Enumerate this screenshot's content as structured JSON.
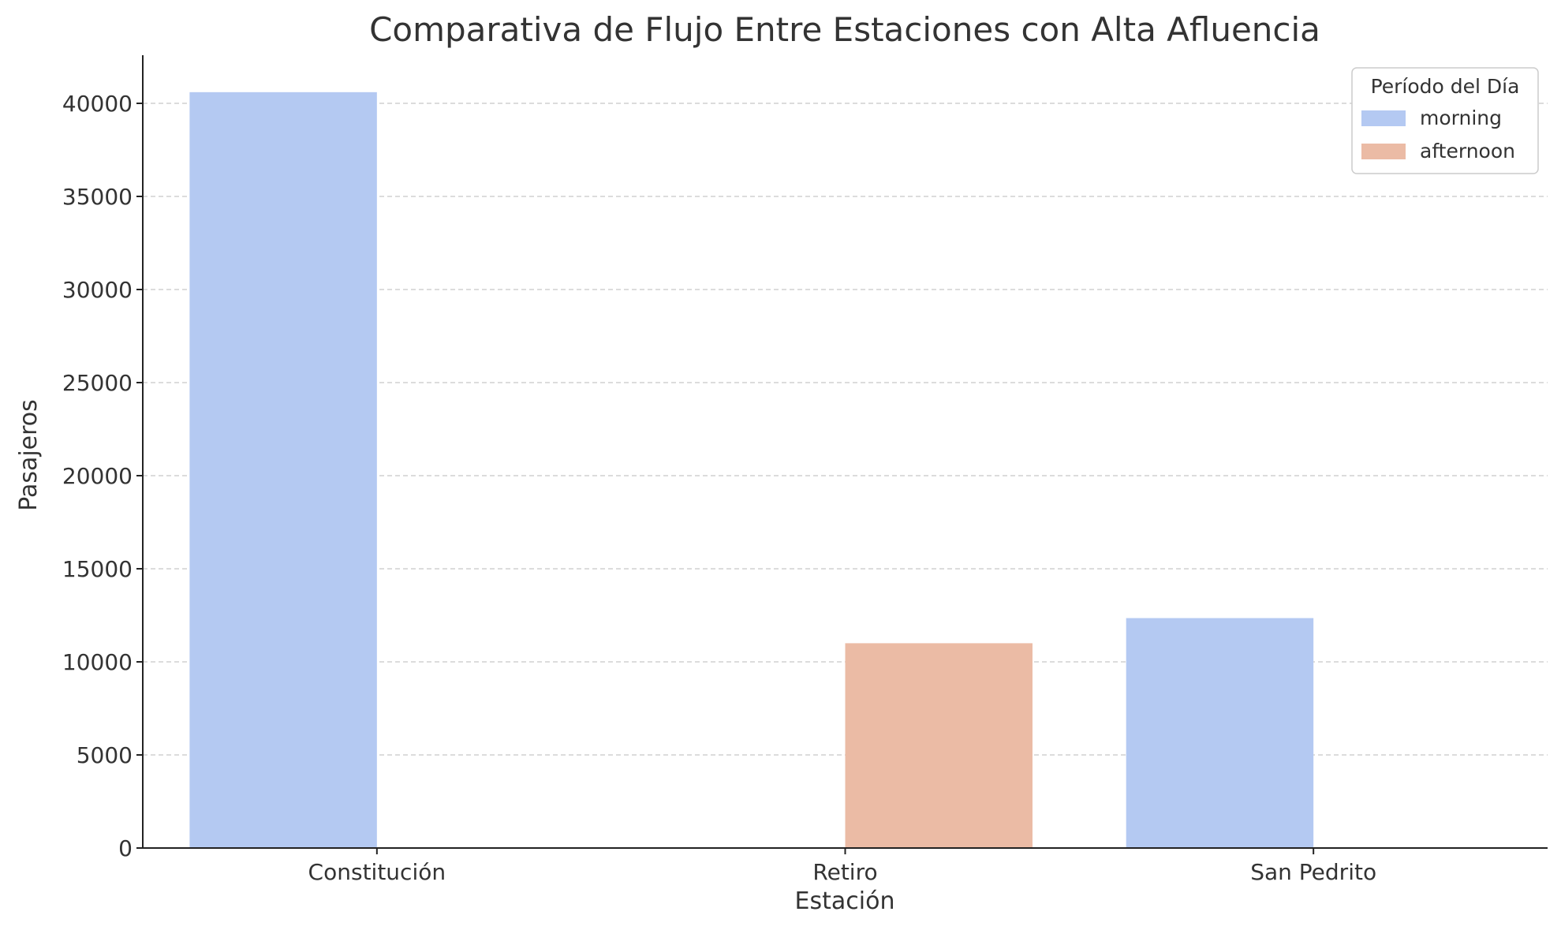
{
  "chart_data": {
    "type": "bar",
    "title": "Comparativa de Flujo Entre Estaciones con Alta Afluencia",
    "xlabel": "Estación",
    "ylabel": "Pasajeros",
    "categories": [
      "Constitución",
      "Retiro",
      "San Pedrito"
    ],
    "series": [
      {
        "name": "morning",
        "color": "#b4c9f2",
        "values": [
          40600,
          null,
          12350
        ]
      },
      {
        "name": "afternoon",
        "color": "#ebbba5",
        "values": [
          null,
          11000,
          null
        ]
      }
    ],
    "ylim": [
      0,
      42500
    ],
    "yticks": [
      0,
      5000,
      10000,
      15000,
      20000,
      25000,
      30000,
      35000,
      40000
    ],
    "grid": true,
    "legend": {
      "title": "Período del Día",
      "placement": "top-right"
    }
  }
}
